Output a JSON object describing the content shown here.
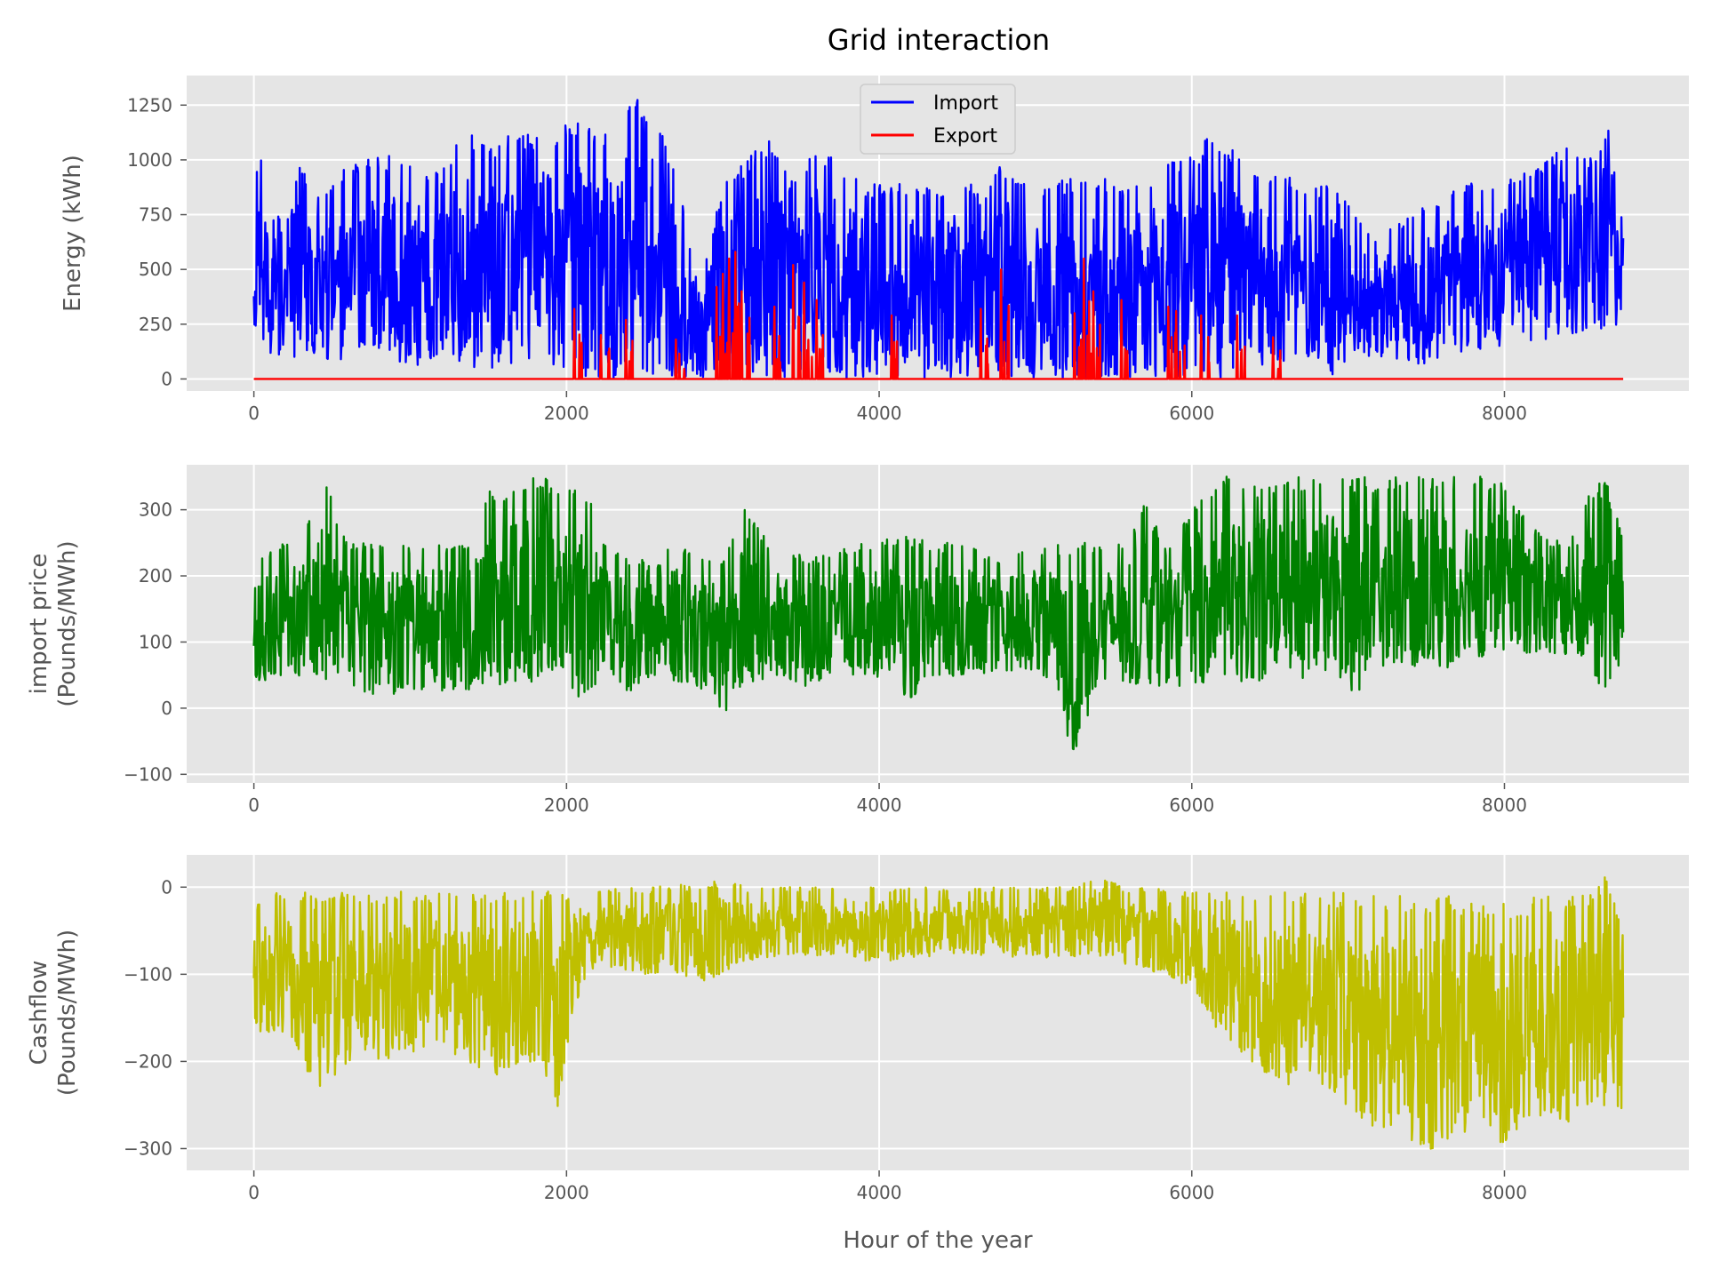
{
  "figure": {
    "title": "Grid interaction"
  },
  "chart_data": [
    {
      "type": "line",
      "ylabel": "Energy (kWh)",
      "xlabel": "",
      "xlim": [
        -430,
        9180
      ],
      "ylim": [
        -55,
        1385
      ],
      "xticks": [
        0,
        2000,
        4000,
        6000,
        8000
      ],
      "yticks": [
        0,
        250,
        500,
        750,
        1000,
        1250
      ],
      "grid": true,
      "legend": "upper-center",
      "series": [
        {
          "name": "Import",
          "color": "#0000ff",
          "x": [
            0,
            150,
            300,
            450,
            600,
            750,
            900,
            1050,
            1200,
            1350,
            1500,
            1650,
            1800,
            1950,
            2100,
            2250,
            2400,
            2550,
            2700,
            2850,
            3000,
            3150,
            3300,
            3450,
            3600,
            3750,
            3900,
            4050,
            4200,
            4350,
            4500,
            4650,
            4800,
            4950,
            5100,
            5250,
            5400,
            5550,
            5700,
            5850,
            6000,
            6150,
            6300,
            6450,
            6600,
            6750,
            6900,
            7050,
            7200,
            7350,
            7500,
            7650,
            7800,
            7950,
            8100,
            8250,
            8400,
            8550,
            8700,
            8760
          ],
          "upper": [
            1140,
            900,
            980,
            850,
            1000,
            1010,
            1020,
            1000,
            950,
            1150,
            1070,
            1120,
            1130,
            1150,
            1180,
            1140,
            1330,
            1240,
            950,
            400,
            900,
            1000,
            1110,
            890,
            1060,
            1000,
            900,
            890,
            910,
            860,
            930,
            860,
            1000,
            880,
            900,
            920,
            920,
            900,
            920,
            1000,
            1030,
            1140,
            1020,
            920,
            930,
            890,
            880,
            760,
            650,
            740,
            790,
            880,
            900,
            930,
            950,
            980,
            1090,
            1010,
            1200,
            810
          ],
          "lower": [
            200,
            80,
            100,
            60,
            80,
            120,
            60,
            40,
            80,
            60,
            40,
            60,
            80,
            20,
            0,
            0,
            0,
            0,
            0,
            0,
            0,
            0,
            0,
            0,
            0,
            0,
            0,
            20,
            0,
            0,
            0,
            0,
            0,
            0,
            0,
            0,
            0,
            0,
            0,
            0,
            0,
            0,
            0,
            60,
            80,
            100,
            0,
            100,
            100,
            80,
            60,
            100,
            120,
            140,
            150,
            180,
            200,
            220,
            230,
            250
          ]
        },
        {
          "name": "Export",
          "color": "#ff0000",
          "x": [
            0,
            2050,
            2220,
            2380,
            2700,
            2960,
            3000,
            3040,
            3080,
            3120,
            3330,
            3450,
            3520,
            3600,
            4080,
            4650,
            4780,
            5250,
            5310,
            5370,
            5550,
            5850,
            5900,
            6060,
            6290,
            6520,
            8760
          ],
          "spikes": [
            0,
            320,
            200,
            270,
            180,
            420,
            480,
            550,
            580,
            400,
            330,
            520,
            440,
            360,
            290,
            320,
            500,
            300,
            550,
            400,
            360,
            330,
            310,
            290,
            290,
            190,
            0
          ]
        }
      ]
    },
    {
      "type": "line",
      "ylabel": "import price\n(Pounds/MWh)",
      "xlabel": "",
      "xlim": [
        -430,
        9180
      ],
      "ylim": [
        -113,
        368
      ],
      "xticks": [
        0,
        2000,
        4000,
        6000,
        8000
      ],
      "yticks": [
        -100,
        0,
        100,
        200,
        300
      ],
      "grid": true,
      "series": [
        {
          "color": "#008000",
          "x": [
            0,
            150,
            300,
            450,
            600,
            750,
            900,
            1050,
            1200,
            1350,
            1500,
            1650,
            1800,
            1950,
            2100,
            2250,
            2400,
            2550,
            2700,
            2850,
            3000,
            3150,
            3300,
            3450,
            3600,
            3750,
            3900,
            4050,
            4200,
            4350,
            4500,
            4650,
            4800,
            4950,
            5100,
            5250,
            5400,
            5550,
            5700,
            5850,
            6000,
            6150,
            6300,
            6450,
            6600,
            6750,
            6900,
            7050,
            7200,
            7350,
            7500,
            7650,
            7800,
            7950,
            8100,
            8250,
            8400,
            8550,
            8650,
            8760
          ],
          "upper": [
            225,
            250,
            255,
            350,
            250,
            250,
            255,
            250,
            250,
            245,
            330,
            340,
            350,
            345,
            350,
            250,
            230,
            220,
            250,
            230,
            230,
            310,
            250,
            240,
            230,
            240,
            255,
            255,
            260,
            250,
            250,
            240,
            230,
            240,
            245,
            260,
            250,
            250,
            310,
            240,
            300,
            350,
            350,
            340,
            350,
            350,
            350,
            350,
            350,
            350,
            350,
            350,
            350,
            350,
            300,
            260,
            250,
            330,
            350,
            260
          ],
          "lower": [
            40,
            40,
            35,
            40,
            30,
            20,
            20,
            20,
            20,
            25,
            30,
            40,
            40,
            55,
            0,
            30,
            25,
            40,
            35,
            30,
            -10,
            35,
            35,
            20,
            40,
            45,
            50,
            45,
            10,
            50,
            45,
            50,
            55,
            60,
            40,
            -95,
            30,
            30,
            40,
            30,
            35,
            40,
            40,
            40,
            60,
            40,
            60,
            0,
            50,
            60,
            60,
            60,
            70,
            75,
            85,
            75,
            70,
            80,
            -30,
            100
          ]
        }
      ]
    },
    {
      "type": "line",
      "ylabel": "Cashflow\n(Pounds/MWh)",
      "xlabel": "Hour of the year",
      "xlim": [
        -430,
        9180
      ],
      "ylim": [
        -325,
        37
      ],
      "xticks": [
        0,
        2000,
        4000,
        6000,
        8000
      ],
      "yticks": [
        -300,
        -200,
        -100,
        0
      ],
      "grid": true,
      "series": [
        {
          "color": "#bfbf00",
          "x": [
            0,
            150,
            300,
            450,
            600,
            750,
            900,
            1050,
            1200,
            1350,
            1500,
            1650,
            1800,
            1950,
            2100,
            2250,
            2400,
            2550,
            2700,
            2850,
            3000,
            3150,
            3300,
            3450,
            3600,
            3750,
            3900,
            4050,
            4200,
            4350,
            4500,
            4650,
            4800,
            4950,
            5100,
            5250,
            5400,
            5550,
            5700,
            5850,
            6000,
            6150,
            6300,
            6450,
            6600,
            6750,
            6900,
            7050,
            7200,
            7350,
            7500,
            7650,
            7800,
            7950,
            8100,
            8250,
            8400,
            8550,
            8650,
            8760
          ],
          "upper": [
            -20,
            -5,
            -5,
            -10,
            -5,
            -5,
            -5,
            -5,
            -5,
            -5,
            -5,
            -5,
            -5,
            -5,
            0,
            0,
            0,
            0,
            5,
            0,
            10,
            0,
            0,
            0,
            0,
            0,
            0,
            0,
            0,
            0,
            0,
            0,
            0,
            0,
            0,
            0,
            20,
            0,
            0,
            0,
            -5,
            -5,
            -5,
            -5,
            -5,
            -5,
            -5,
            -5,
            -5,
            -10,
            -10,
            -10,
            -15,
            -15,
            -15,
            -10,
            -10,
            -5,
            20,
            -40
          ],
          "lower": [
            -160,
            -180,
            -200,
            -255,
            -200,
            -200,
            -200,
            -190,
            -190,
            -200,
            -220,
            -210,
            -200,
            -255,
            -110,
            -90,
            -100,
            -100,
            -100,
            -110,
            -100,
            -85,
            -80,
            -80,
            -80,
            -75,
            -85,
            -85,
            -80,
            -80,
            -75,
            -80,
            -80,
            -85,
            -80,
            -80,
            -80,
            -90,
            -95,
            -100,
            -120,
            -160,
            -190,
            -210,
            -230,
            -210,
            -240,
            -260,
            -280,
            -300,
            -310,
            -290,
            -280,
            -295,
            -290,
            -260,
            -280,
            -260,
            -250,
            -255
          ]
        }
      ]
    }
  ]
}
